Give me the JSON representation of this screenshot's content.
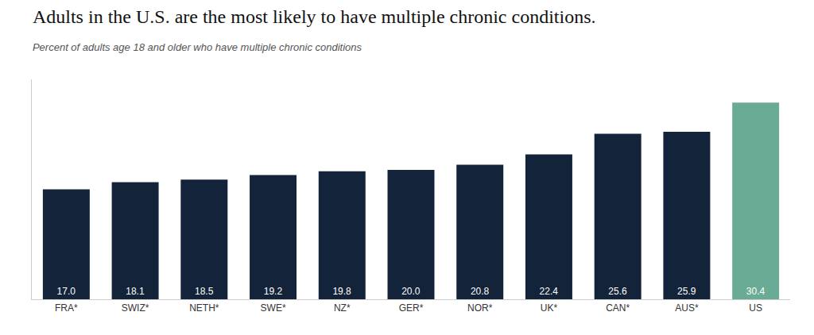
{
  "chart_data": {
    "type": "bar",
    "title": "Adults in the U.S. are the most likely to have multiple chronic conditions.",
    "subtitle": "Percent of adults age 18 and older who have multiple chronic conditions",
    "categories": [
      "FRA*",
      "SWIZ*",
      "NETH*",
      "SWE*",
      "NZ*",
      "GER*",
      "NOR*",
      "UK*",
      "CAN*",
      "AUS*",
      "US"
    ],
    "values": [
      17.0,
      18.1,
      18.5,
      19.2,
      19.8,
      20.0,
      20.8,
      22.4,
      25.6,
      25.9,
      30.4
    ],
    "value_labels": [
      "17.0",
      "18.1",
      "18.5",
      "19.2",
      "19.8",
      "20.0",
      "20.8",
      "22.4",
      "25.6",
      "25.9",
      "30.4"
    ],
    "colors": [
      "#12233a",
      "#12233a",
      "#12233a",
      "#12233a",
      "#12233a",
      "#12233a",
      "#12233a",
      "#12233a",
      "#12233a",
      "#12233a",
      "#6aab96"
    ],
    "ylim": [
      0,
      34
    ],
    "grid": false,
    "data_labels": true,
    "tick_labels": "x"
  }
}
